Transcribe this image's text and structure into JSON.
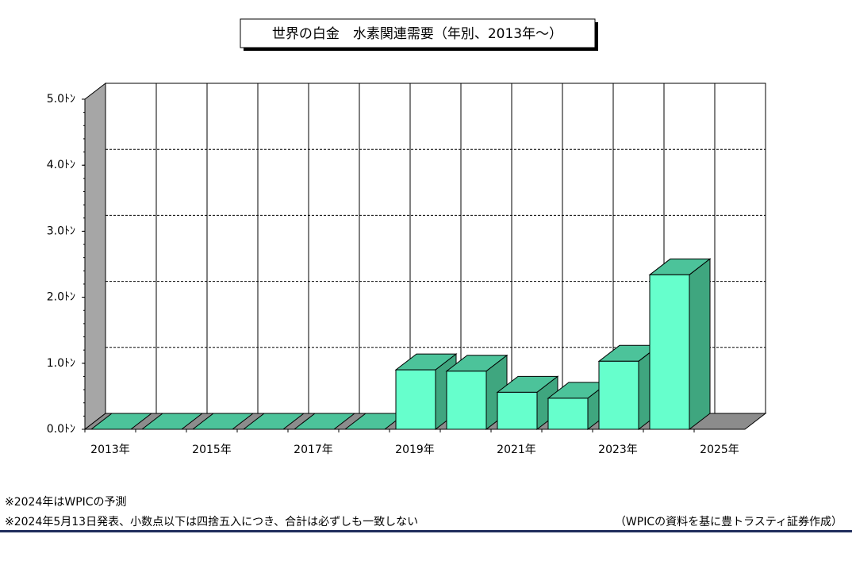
{
  "chart_data": {
    "type": "bar",
    "title": "世界の白金　水素関連需要（年別、2013年～）",
    "categories": [
      "2013年",
      null,
      "2015年",
      null,
      "2017年",
      null,
      "2019年",
      null,
      "2021年",
      null,
      "2023年",
      null,
      "2025年"
    ],
    "values": [
      0,
      0,
      0,
      0,
      0,
      0,
      0.9,
      0.88,
      0.56,
      0.47,
      1.03,
      2.34,
      null
    ],
    "color": "#66ffcc",
    "ylim": [
      0,
      5
    ],
    "yticks": [
      {
        "value": 0,
        "label": "0.0ﾄﾝ"
      },
      {
        "value": 1,
        "label": "1.0ﾄﾝ"
      },
      {
        "value": 2,
        "label": "2.0ﾄﾝ"
      },
      {
        "value": 3,
        "label": "3.0ﾄﾝ"
      },
      {
        "value": 4,
        "label": "4.0ﾄﾝ"
      },
      {
        "value": 5,
        "label": "5.0ﾄﾝ"
      }
    ],
    "grid": true,
    "notes": [
      "※2024年はWPICの予測",
      "※2024年5月13日発表、小数点以下は四捨五入につき、合計は必ずしも一致しない"
    ],
    "source": "（WPICの資料を基に豊トラスティ証券作成）"
  }
}
